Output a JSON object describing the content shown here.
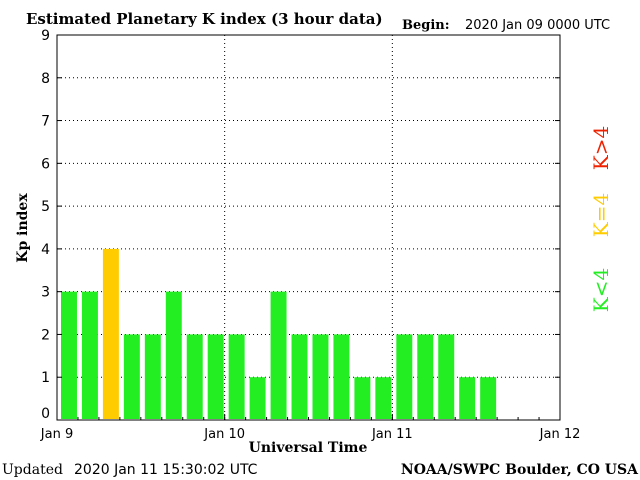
{
  "header": {
    "title": "Estimated Planetary K index (3 hour data)",
    "begin_label": "Begin:",
    "begin_value": "2020 Jan 09 0000 UTC"
  },
  "footer": {
    "updated_label": "Updated",
    "updated_value": "2020 Jan 11 15:30:02 UTC",
    "credit": "NOAA/SWPC Boulder, CO USA"
  },
  "legend": {
    "items": [
      {
        "label": "K<4",
        "color": "#22ee22"
      },
      {
        "label": "K=4",
        "color": "#ffcc00"
      },
      {
        "label": "K>4",
        "color": "#ee2200"
      }
    ]
  },
  "chart_data": {
    "type": "bar",
    "ylabel": "Kp index",
    "xlabel": "Universal Time",
    "ylim": [
      0,
      9
    ],
    "yticks": [
      "0",
      "1",
      "2",
      "3",
      "4",
      "5",
      "6",
      "7",
      "8",
      "9"
    ],
    "xticks": [
      "Jan 9",
      "Jan 10",
      "Jan 11",
      "Jan 12"
    ],
    "bins_total": 24,
    "values": [
      3,
      3,
      4,
      2,
      2,
      3,
      2,
      2,
      2,
      1,
      3,
      2,
      2,
      2,
      1,
      1,
      2,
      2,
      2,
      1,
      1
    ],
    "grid": true,
    "color_rules": {
      "below_4": "#22ee22",
      "equal_4": "#ffcc00",
      "above_4": "#ee2200"
    }
  }
}
